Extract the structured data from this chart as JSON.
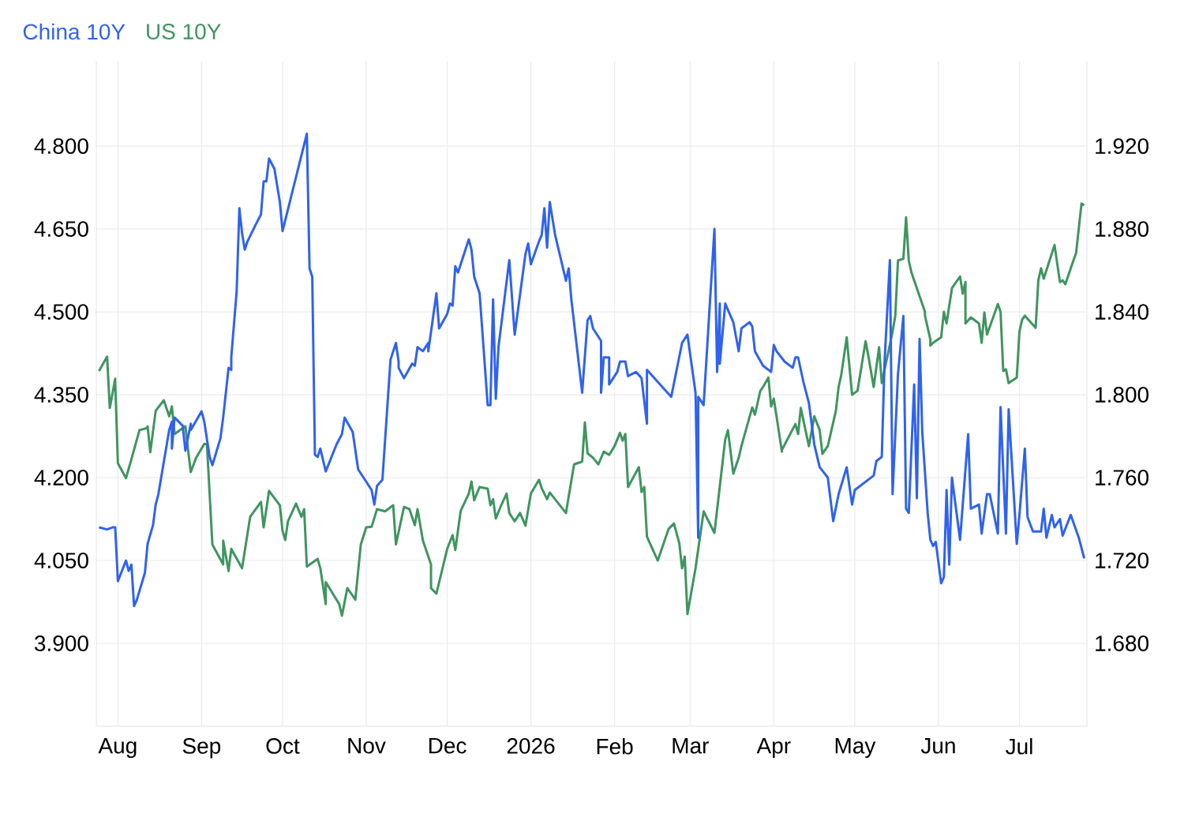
{
  "chart_data": {
    "type": "line",
    "xlim": [
      "2025-07-24",
      "2026-07-26"
    ],
    "xticks": [
      {
        "value": "2025-08-01",
        "label": "Aug"
      },
      {
        "value": "2025-09-01",
        "label": "Sep"
      },
      {
        "value": "2025-10-01",
        "label": "Oct"
      },
      {
        "value": "2025-11-01",
        "label": "Nov"
      },
      {
        "value": "2025-12-01",
        "label": "Dec"
      },
      {
        "value": "2026-01-01",
        "label": "2026"
      },
      {
        "value": "2026-02-01",
        "label": "Feb"
      },
      {
        "value": "2026-03-01",
        "label": "Mar"
      },
      {
        "value": "2026-04-01",
        "label": "Apr"
      },
      {
        "value": "2026-05-01",
        "label": "May"
      },
      {
        "value": "2026-06-01",
        "label": "Jun"
      },
      {
        "value": "2026-07-01",
        "label": "Jul"
      }
    ],
    "ylim": [
      3.75,
      4.953
    ],
    "yticks": [
      {
        "value": 3.9,
        "label": "3.900"
      },
      {
        "value": 4.05,
        "label": "4.050"
      },
      {
        "value": 4.2,
        "label": "4.200"
      },
      {
        "value": 4.35,
        "label": "4.350"
      },
      {
        "value": 4.5,
        "label": "4.500"
      },
      {
        "value": 4.65,
        "label": "4.650"
      },
      {
        "value": 4.8,
        "label": "4.800"
      }
    ],
    "y2lim": [
      1.64,
      1.9608
    ],
    "y2ticks": [
      {
        "value": 1.68,
        "label": "1.680"
      },
      {
        "value": 1.72,
        "label": "1.720"
      },
      {
        "value": 1.76,
        "label": "1.760"
      },
      {
        "value": 1.8,
        "label": "1.800"
      },
      {
        "value": 1.84,
        "label": "1.840"
      },
      {
        "value": 1.88,
        "label": "1.880"
      },
      {
        "value": 1.92,
        "label": "1.920"
      }
    ],
    "grid": true,
    "legend": "top left",
    "series": [
      {
        "name": "China 10Y",
        "color": "#2f62f0",
        "axis": "y2",
        "x": [
          "2025-07-25",
          "2025-07-28",
          "2025-07-30",
          "2025-07-31",
          "2025-08-01",
          "2025-08-04",
          "2025-08-05",
          "2025-08-06",
          "2025-08-07",
          "2025-08-08",
          "2025-08-11",
          "2025-08-12",
          "2025-08-14",
          "2025-08-15",
          "2025-08-16",
          "2025-08-20",
          "2025-08-21",
          "2025-08-21",
          "2025-08-22",
          "2025-08-25",
          "2025-08-26",
          "2025-08-28",
          "2025-08-28",
          "2025-09-01",
          "2025-09-02",
          "2025-09-04",
          "2025-09-05",
          "2025-09-08",
          "2025-09-09",
          "2025-09-11",
          "2025-09-12",
          "2025-09-12",
          "2025-09-14",
          "2025-09-15",
          "2025-09-16",
          "2025-09-17",
          "2025-09-18",
          "2025-09-21",
          "2025-09-23",
          "2025-09-24",
          "2025-09-25",
          "2025-09-26",
          "2025-09-28",
          "2025-09-30",
          "2025-10-01",
          "2025-10-10",
          "2025-10-11",
          "2025-10-12",
          "2025-10-13",
          "2025-10-14",
          "2025-10-15",
          "2025-10-17",
          "2025-10-21",
          "2025-10-23",
          "2025-10-24",
          "2025-10-27",
          "2025-10-29",
          "2025-10-31",
          "2025-11-03",
          "2025-11-04",
          "2025-11-05",
          "2025-11-07",
          "2025-11-10",
          "2025-11-12",
          "2025-11-13",
          "2025-11-13",
          "2025-11-15",
          "2025-11-18",
          "2025-11-19",
          "2025-11-20",
          "2025-11-22",
          "2025-11-24",
          "2025-11-24",
          "2025-11-27",
          "2025-11-28",
          "2025-12-01",
          "2025-12-02",
          "2025-12-03",
          "2025-12-04",
          "2025-12-05",
          "2025-12-09",
          "2025-12-10",
          "2025-12-11",
          "2025-12-13",
          "2025-12-16",
          "2025-12-17",
          "2025-12-18",
          "2025-12-19",
          "2025-12-20",
          "2025-12-24",
          "2025-12-26",
          "2025-12-30",
          "2025-12-31",
          "2026-01-01",
          "2026-01-04",
          "2026-01-05",
          "2026-01-06",
          "2026-01-07",
          "2026-01-08",
          "2026-01-10",
          "2026-01-14",
          "2026-01-15",
          "2026-01-16",
          "2026-01-20",
          "2026-01-22",
          "2026-01-23",
          "2026-01-24",
          "2026-01-27",
          "2026-01-27",
          "2026-01-28",
          "2026-01-30",
          "2026-01-30",
          "2026-02-02",
          "2026-02-03",
          "2026-02-05",
          "2026-02-06",
          "2026-02-09",
          "2026-02-11",
          "2026-02-13",
          "2026-02-13",
          "2026-02-22",
          "2026-02-26",
          "2026-02-28",
          "2026-02-28",
          "2026-03-03",
          "2026-03-04",
          "2026-03-04",
          "2026-03-06",
          "2026-03-10",
          "2026-03-11",
          "2026-03-12",
          "2026-03-12",
          "2026-03-14",
          "2026-03-17",
          "2026-03-19",
          "2026-03-20",
          "2026-03-23",
          "2026-03-24",
          "2026-03-25",
          "2026-03-28",
          "2026-03-31",
          "2026-04-01",
          "2026-04-02",
          "2026-04-05",
          "2026-04-08",
          "2026-04-09",
          "2026-04-10",
          "2026-04-12",
          "2026-04-14",
          "2026-04-16",
          "2026-04-18",
          "2026-04-21",
          "2026-04-23",
          "2026-04-25",
          "2026-04-28",
          "2026-04-30",
          "2026-05-01",
          "2026-05-08",
          "2026-05-09",
          "2026-05-11",
          "2026-05-12",
          "2026-05-14",
          "2026-05-15",
          "2026-05-17",
          "2026-05-19",
          "2026-05-20",
          "2026-05-21",
          "2026-05-23",
          "2026-05-24",
          "2026-05-25",
          "2026-05-26",
          "2026-05-28",
          "2026-05-29",
          "2026-05-30",
          "2026-05-31",
          "2026-06-02",
          "2026-06-03",
          "2026-06-04",
          "2026-06-05",
          "2026-06-06",
          "2026-06-09",
          "2026-06-12",
          "2026-06-13",
          "2026-06-16",
          "2026-06-17",
          "2026-06-19",
          "2026-06-20",
          "2026-06-23",
          "2026-06-24",
          "2026-06-26",
          "2026-06-27",
          "2026-06-30",
          "2026-07-01",
          "2026-07-03",
          "2026-07-04",
          "2026-07-06",
          "2026-07-09",
          "2026-07-10",
          "2026-07-11",
          "2026-07-13",
          "2026-07-14",
          "2026-07-16",
          "2026-07-17",
          "2026-07-20",
          "2026-07-23",
          "2026-07-25"
        ],
        "values": [
          1.736,
          1.735,
          1.736,
          1.736,
          1.71,
          1.72,
          1.715,
          1.718,
          1.698,
          1.701,
          1.714,
          1.728,
          1.737,
          1.747,
          1.752,
          1.783,
          1.787,
          1.774,
          1.789,
          1.785,
          1.773,
          1.786,
          1.783,
          1.792,
          1.787,
          1.77,
          1.766,
          1.779,
          1.789,
          1.813,
          1.812,
          1.818,
          1.85,
          1.89,
          1.878,
          1.87,
          1.874,
          1.882,
          1.887,
          1.903,
          1.903,
          1.914,
          1.909,
          1.893,
          1.879,
          1.926,
          1.861,
          1.857,
          1.771,
          1.77,
          1.774,
          1.763,
          1.776,
          1.781,
          1.789,
          1.782,
          1.764,
          1.76,
          1.754,
          1.747,
          1.756,
          1.759,
          1.817,
          1.825,
          1.816,
          1.813,
          1.808,
          1.815,
          1.814,
          1.823,
          1.821,
          1.825,
          1.821,
          1.849,
          1.832,
          1.839,
          1.844,
          1.843,
          1.862,
          1.859,
          1.875,
          1.87,
          1.857,
          1.849,
          1.795,
          1.795,
          1.846,
          1.798,
          1.823,
          1.865,
          1.829,
          1.868,
          1.873,
          1.863,
          1.874,
          1.877,
          1.89,
          1.871,
          1.893,
          1.877,
          1.855,
          1.861,
          1.846,
          1.801,
          1.836,
          1.838,
          1.832,
          1.826,
          1.801,
          1.818,
          1.818,
          1.805,
          1.811,
          1.816,
          1.816,
          1.809,
          1.811,
          1.808,
          1.786,
          1.812,
          1.799,
          1.825,
          1.829,
          1.829,
          1.801,
          1.731,
          1.799,
          1.795,
          1.88,
          1.811,
          1.844,
          1.815,
          1.844,
          1.835,
          1.821,
          1.832,
          1.835,
          1.833,
          1.821,
          1.814,
          1.811,
          1.824,
          1.821,
          1.816,
          1.813,
          1.818,
          1.818,
          1.806,
          1.796,
          1.776,
          1.765,
          1.76,
          1.739,
          1.752,
          1.765,
          1.747,
          1.754,
          1.761,
          1.768,
          1.77,
          1.815,
          1.865,
          1.752,
          1.81,
          1.838,
          1.745,
          1.743,
          1.805,
          1.75,
          1.827,
          1.782,
          1.743,
          1.73,
          1.727,
          1.729,
          1.709,
          1.712,
          1.754,
          1.718,
          1.76,
          1.73,
          1.781,
          1.745,
          1.747,
          1.733,
          1.752,
          1.752,
          1.733,
          1.794,
          1.733,
          1.793,
          1.728,
          1.742,
          1.774,
          1.741,
          1.734,
          1.734,
          1.745,
          1.731,
          1.742,
          1.736,
          1.74,
          1.732,
          1.742,
          1.731,
          1.721
        ]
      },
      {
        "name": "US 10Y",
        "color": "#3f955f",
        "axis": "y",
        "x": [
          "2025-07-25",
          "2025-07-28",
          "2025-07-29",
          "2025-07-31",
          "2025-07-31",
          "2025-08-01",
          "2025-08-04",
          "2025-08-06",
          "2025-08-09",
          "2025-08-12",
          "2025-08-12",
          "2025-08-13",
          "2025-08-15",
          "2025-08-18",
          "2025-08-20",
          "2025-08-21",
          "2025-08-22",
          "2025-08-26",
          "2025-08-27",
          "2025-08-28",
          "2025-08-30",
          "2025-09-02",
          "2025-09-03",
          "2025-09-05",
          "2025-09-09",
          "2025-09-09",
          "2025-09-11",
          "2025-09-12",
          "2025-09-16",
          "2025-09-19",
          "2025-09-23",
          "2025-09-24",
          "2025-09-26",
          "2025-09-30",
          "2025-10-01",
          "2025-10-02",
          "2025-10-03",
          "2025-10-06",
          "2025-10-08",
          "2025-10-09",
          "2025-10-10",
          "2025-10-14",
          "2025-10-15",
          "2025-10-17",
          "2025-10-17",
          "2025-10-22",
          "2025-10-23",
          "2025-10-25",
          "2025-10-28",
          "2025-10-28",
          "2025-10-30",
          "2025-11-01",
          "2025-11-03",
          "2025-11-05",
          "2025-11-08",
          "2025-11-11",
          "2025-11-12",
          "2025-11-15",
          "2025-11-17",
          "2025-11-19",
          "2025-11-20",
          "2025-11-22",
          "2025-11-25",
          "2025-11-25",
          "2025-11-27",
          "2025-12-01",
          "2025-12-03",
          "2025-12-04",
          "2025-12-06",
          "2025-12-09",
          "2025-12-10",
          "2025-12-11",
          "2025-12-13",
          "2025-12-16",
          "2025-12-17",
          "2025-12-18",
          "2025-12-19",
          "2025-12-21",
          "2025-12-23",
          "2025-12-24",
          "2025-12-26",
          "2025-12-28",
          "2025-12-30",
          "2026-01-01",
          "2026-01-04",
          "2026-01-05",
          "2026-01-07",
          "2026-01-08",
          "2026-01-14",
          "2026-01-17",
          "2026-01-20",
          "2026-01-21",
          "2026-01-22",
          "2026-01-24",
          "2026-01-26",
          "2026-01-28",
          "2026-01-30",
          "2026-02-01",
          "2026-02-03",
          "2026-02-04",
          "2026-02-05",
          "2026-02-06",
          "2026-02-10",
          "2026-02-11",
          "2026-02-12",
          "2026-02-13",
          "2026-02-17",
          "2026-02-18",
          "2026-02-21",
          "2026-02-23",
          "2026-02-25",
          "2026-02-26",
          "2026-02-27",
          "2026-02-28",
          "2026-03-03",
          "2026-03-06",
          "2026-03-10",
          "2026-03-14",
          "2026-03-15",
          "2026-03-17",
          "2026-03-19",
          "2026-03-20",
          "2026-03-24",
          "2026-03-25",
          "2026-03-27",
          "2026-03-28",
          "2026-03-30",
          "2026-03-31",
          "2026-04-01",
          "2026-04-04",
          "2026-04-04",
          "2026-04-09",
          "2026-04-10",
          "2026-04-11",
          "2026-04-14",
          "2026-04-16",
          "2026-04-18",
          "2026-04-19",
          "2026-04-21",
          "2026-04-24",
          "2026-04-25",
          "2026-04-26",
          "2026-04-28",
          "2026-04-30",
          "2026-05-02",
          "2026-05-05",
          "2026-05-06",
          "2026-05-08",
          "2026-05-10",
          "2026-05-11",
          "2026-05-15",
          "2026-05-16",
          "2026-05-17",
          "2026-05-19",
          "2026-05-19",
          "2026-05-20",
          "2026-05-21",
          "2026-05-22",
          "2026-05-23",
          "2026-05-27",
          "2026-05-27",
          "2026-05-29",
          "2026-05-29",
          "2026-05-30",
          "2026-06-02",
          "2026-06-03",
          "2026-06-04",
          "2026-06-06",
          "2026-06-09",
          "2026-06-10",
          "2026-06-11",
          "2026-06-11",
          "2026-06-13",
          "2026-06-16",
          "2026-06-17",
          "2026-06-18",
          "2026-06-19",
          "2026-06-23",
          "2026-06-24",
          "2026-06-25",
          "2026-06-26",
          "2026-06-27",
          "2026-06-30",
          "2026-07-01",
          "2026-07-02",
          "2026-07-03",
          "2026-07-07",
          "2026-07-08",
          "2026-07-09",
          "2026-07-10",
          "2026-07-14",
          "2026-07-16",
          "2026-07-17",
          "2026-07-18",
          "2026-07-21",
          "2026-07-22",
          "2026-07-24",
          "2026-07-25"
        ],
        "values": [
          4.393,
          4.419,
          4.326,
          4.379,
          4.374,
          4.226,
          4.199,
          4.233,
          4.286,
          4.29,
          4.293,
          4.246,
          4.321,
          4.34,
          4.311,
          4.329,
          4.279,
          4.293,
          4.25,
          4.21,
          4.236,
          4.261,
          4.26,
          4.079,
          4.043,
          4.086,
          4.031,
          4.071,
          4.036,
          4.129,
          4.156,
          4.11,
          4.176,
          4.15,
          4.104,
          4.087,
          4.121,
          4.153,
          4.129,
          4.143,
          4.039,
          4.053,
          4.036,
          3.971,
          4.011,
          3.971,
          3.95,
          4.0,
          3.979,
          3.981,
          4.079,
          4.11,
          4.111,
          4.143,
          4.139,
          4.15,
          4.079,
          4.147,
          4.143,
          4.114,
          4.143,
          4.086,
          4.043,
          4.0,
          3.99,
          4.071,
          4.096,
          4.069,
          4.14,
          4.171,
          4.193,
          4.159,
          4.183,
          4.18,
          4.15,
          4.161,
          4.126,
          4.15,
          4.171,
          4.136,
          4.121,
          4.136,
          4.113,
          4.171,
          4.196,
          4.181,
          4.161,
          4.173,
          4.136,
          4.224,
          4.229,
          4.3,
          4.244,
          4.236,
          4.224,
          4.247,
          4.241,
          4.257,
          4.281,
          4.267,
          4.279,
          4.183,
          4.219,
          4.174,
          4.183,
          4.093,
          4.05,
          4.064,
          4.107,
          4.117,
          4.081,
          4.036,
          4.057,
          3.953,
          4.036,
          4.139,
          4.1,
          4.269,
          4.286,
          4.207,
          4.236,
          4.257,
          4.327,
          4.314,
          4.357,
          4.364,
          4.381,
          4.329,
          4.343,
          4.247,
          4.25,
          4.297,
          4.279,
          4.326,
          4.257,
          4.311,
          4.286,
          4.243,
          4.257,
          4.321,
          4.364,
          4.386,
          4.454,
          4.35,
          4.357,
          4.447,
          4.421,
          4.364,
          4.436,
          4.371,
          4.464,
          4.493,
          4.593,
          4.596,
          4.596,
          4.671,
          4.593,
          4.571,
          4.557,
          4.5,
          4.493,
          4.45,
          4.439,
          4.444,
          4.454,
          4.5,
          4.479,
          4.543,
          4.564,
          4.533,
          4.554,
          4.479,
          4.49,
          4.479,
          4.444,
          4.499,
          4.459,
          4.514,
          4.5,
          4.393,
          4.396,
          4.371,
          4.381,
          4.464,
          4.486,
          4.493,
          4.471,
          4.557,
          4.579,
          4.56,
          4.621,
          4.554,
          4.557,
          4.55,
          4.593,
          4.607,
          4.696,
          4.693
        ]
      }
    ]
  }
}
